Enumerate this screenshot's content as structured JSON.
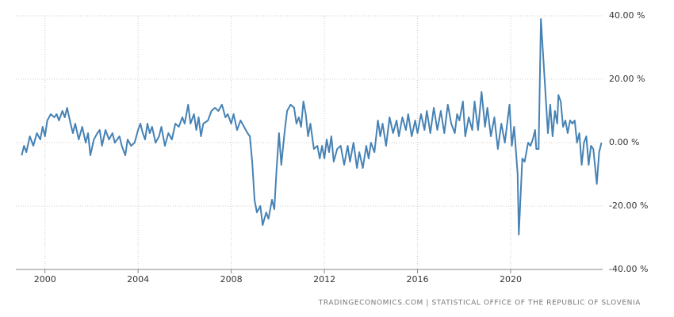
{
  "chart_data": {
    "type": "line",
    "source": "TRADINGECONOMICS.COM  |  STATISTICAL OFFICE OF THE REPUBLIC OF SLOVENIA",
    "color": "#4682b4",
    "x": [
      1999.0,
      1999.1,
      1999.2,
      1999.35,
      1999.5,
      1999.65,
      1999.8,
      1999.9,
      2000.0,
      2000.1,
      2000.25,
      2000.4,
      2000.5,
      2000.6,
      2000.75,
      2000.85,
      2000.95,
      2001.1,
      2001.2,
      2001.3,
      2001.45,
      2001.6,
      2001.75,
      2001.85,
      2001.95,
      2002.1,
      2002.25,
      2002.35,
      2002.45,
      2002.6,
      2002.75,
      2002.9,
      2003.0,
      2003.2,
      2003.3,
      2003.45,
      2003.55,
      2003.7,
      2003.85,
      2004.0,
      2004.1,
      2004.2,
      2004.3,
      2004.4,
      2004.5,
      2004.6,
      2004.75,
      2004.9,
      2005.0,
      2005.15,
      2005.3,
      2005.45,
      2005.6,
      2005.75,
      2005.9,
      2006.0,
      2006.15,
      2006.25,
      2006.4,
      2006.5,
      2006.6,
      2006.7,
      2006.8,
      2007.0,
      2007.15,
      2007.3,
      2007.45,
      2007.6,
      2007.75,
      2007.85,
      2008.0,
      2008.1,
      2008.25,
      2008.4,
      2008.55,
      2008.7,
      2008.8,
      2008.9,
      2009.0,
      2009.1,
      2009.25,
      2009.35,
      2009.5,
      2009.6,
      2009.75,
      2009.85,
      2009.95,
      2010.05,
      2010.15,
      2010.3,
      2010.4,
      2010.55,
      2010.7,
      2010.8,
      2010.9,
      2011.0,
      2011.1,
      2011.2,
      2011.3,
      2011.4,
      2011.55,
      2011.7,
      2011.8,
      2011.9,
      2012.0,
      2012.1,
      2012.2,
      2012.3,
      2012.4,
      2012.55,
      2012.7,
      2012.85,
      2013.0,
      2013.1,
      2013.25,
      2013.4,
      2013.5,
      2013.65,
      2013.8,
      2013.9,
      2014.0,
      2014.15,
      2014.3,
      2014.4,
      2014.5,
      2014.65,
      2014.8,
      2014.95,
      2015.1,
      2015.2,
      2015.35,
      2015.5,
      2015.6,
      2015.75,
      2015.9,
      2016.0,
      2016.15,
      2016.3,
      2016.4,
      2016.55,
      2016.7,
      2016.85,
      2017.0,
      2017.15,
      2017.3,
      2017.45,
      2017.6,
      2017.7,
      2017.8,
      2017.95,
      2018.05,
      2018.2,
      2018.35,
      2018.45,
      2018.6,
      2018.75,
      2018.9,
      2019.0,
      2019.15,
      2019.3,
      2019.45,
      2019.6,
      2019.75,
      2019.95,
      2020.05,
      2020.15,
      2020.3,
      2020.35,
      2020.5,
      2020.6,
      2020.75,
      2020.85,
      2020.95,
      2021.05,
      2021.1,
      2021.2,
      2021.3,
      2021.5,
      2021.6,
      2021.7,
      2021.8,
      2021.9,
      2022.0,
      2022.05,
      2022.15,
      2022.25,
      2022.35,
      2022.45,
      2022.55,
      2022.65,
      2022.75,
      2022.85,
      2022.95,
      2023.05,
      2023.15,
      2023.25,
      2023.35,
      2023.45,
      2023.55,
      2023.7,
      2023.8,
      2023.9
    ],
    "values": [
      -4,
      -1,
      -3,
      2,
      -1,
      3,
      1,
      5,
      2,
      7,
      9,
      8,
      9,
      7,
      10,
      8,
      11,
      6,
      3,
      6,
      1,
      5,
      0,
      3,
      -4,
      1,
      3,
      4,
      -1,
      4,
      1,
      3,
      0,
      2,
      -1,
      -4,
      1,
      -1,
      0,
      4,
      6,
      3,
      1,
      6,
      3,
      5,
      0,
      2,
      5,
      -1,
      3,
      1,
      6,
      5,
      8,
      6,
      12,
      6,
      9,
      4,
      8,
      2,
      6,
      7,
      10,
      11,
      10,
      12,
      8,
      9,
      6,
      9,
      4,
      7,
      5,
      3,
      2,
      -6,
      -18,
      -22,
      -20,
      -26,
      -22,
      -24,
      -18,
      -21,
      -8,
      3,
      -7,
      4,
      10,
      12,
      11,
      6,
      8,
      5,
      13,
      9,
      2,
      6,
      -2,
      -1,
      -5,
      -1,
      -5,
      1,
      -3,
      2,
      -6,
      -2,
      -1,
      -7,
      -1,
      -6,
      0,
      -8,
      -3,
      -8,
      -1,
      -5,
      0,
      -3,
      7,
      2,
      6,
      -1,
      8,
      3,
      7,
      2,
      8,
      4,
      9,
      2,
      7,
      3,
      9,
      4,
      10,
      3,
      11,
      4,
      10,
      3,
      12,
      6,
      3,
      9,
      7,
      13,
      2,
      8,
      4,
      13,
      4,
      16,
      5,
      11,
      2,
      8,
      -2,
      6,
      0,
      12,
      -1,
      5,
      -10,
      -29,
      -5,
      -6,
      0,
      -1,
      1,
      4,
      -2,
      -2,
      39,
      15,
      3,
      12,
      2,
      10,
      6,
      15,
      13,
      5,
      7,
      3,
      7,
      6,
      7,
      0,
      3,
      -7,
      0,
      2,
      -7,
      -1,
      -2,
      -13,
      -3,
      0
    ],
    "xlim": [
      1998.75,
      2023.95
    ],
    "xticks": [
      2000,
      2004,
      2008,
      2012,
      2016,
      2020
    ],
    "ylim": [
      -40,
      40
    ],
    "yticks": [
      {
        "value": -40,
        "label": "-40.00 %"
      },
      {
        "value": -20,
        "label": "-20.00 %"
      },
      {
        "value": 0,
        "label": "0.00 %"
      },
      {
        "value": 20,
        "label": "20.00 %"
      },
      {
        "value": 40,
        "label": "40.00 %"
      }
    ],
    "grid": true
  }
}
